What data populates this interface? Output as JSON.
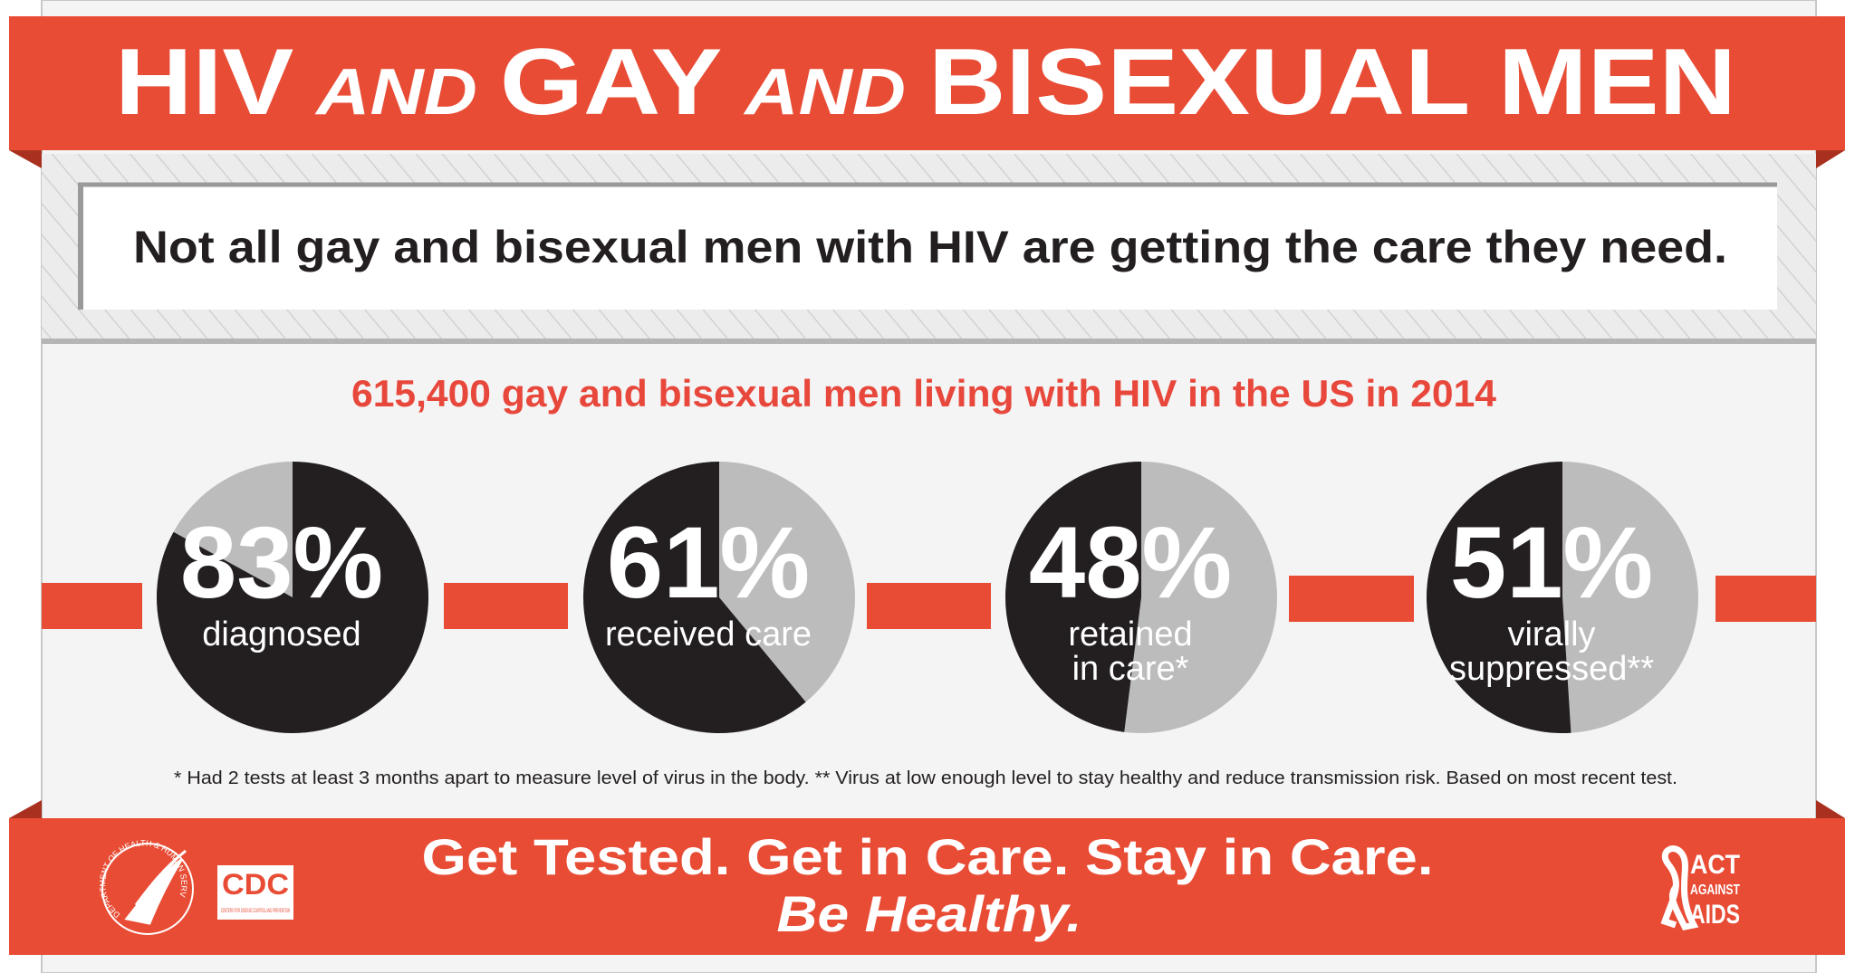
{
  "header": {
    "title": [
      "HIV",
      "AND",
      "GAY",
      "AND",
      "BISEXUAL MEN"
    ]
  },
  "subtitle": "Not all gay and bisexual men with HIV are getting the care they need.",
  "chart_data": {
    "type": "pie",
    "title": "615,400 gay and bisexual men living with HIV in the US in 2014",
    "categories": [
      [
        "diagnosed"
      ],
      [
        "received care"
      ],
      [
        "retained",
        "in care*"
      ],
      [
        "virally",
        "suppressed**"
      ]
    ],
    "values": [
      83,
      61,
      48,
      51
    ],
    "value_labels": [
      "83%",
      "61%",
      "48%",
      "51%"
    ],
    "directions": [
      "clockwise",
      "counterclockwise",
      "counterclockwise",
      "counterclockwise"
    ],
    "colors": [
      "#231f20",
      "#bcbcbc"
    ]
  },
  "footnote": "* Had 2 tests at least 3 months apart to measure level of virus in the body. ** Virus at low enough level to stay healthy and reduce transmission risk. Based on most recent test.",
  "footer": {
    "lines": [
      "Get Tested. Get in Care. Stay in Care.",
      "Be Healthy."
    ]
  },
  "logos": {
    "hhs": "DEPARTMENT OF HEALTH & HUMAN SERVICES USA",
    "cdc": "CDC",
    "cdc_sub": "CENTERS FOR DISEASE CONTROL AND PREVENTION",
    "act": [
      "ACT",
      "AGAINST",
      "AIDS"
    ]
  }
}
